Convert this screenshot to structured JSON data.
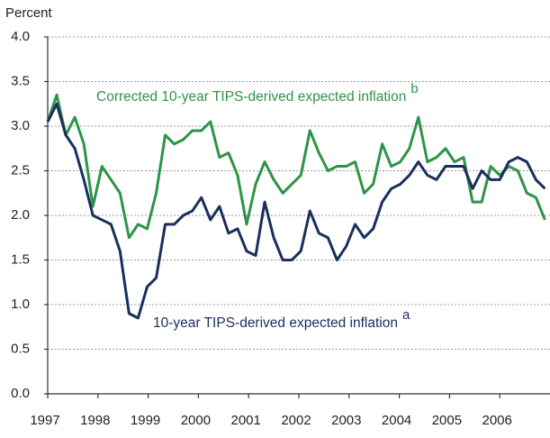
{
  "chart_data": {
    "type": "line",
    "y_axis_label": "Percent",
    "x": [
      1997,
      1997.18,
      1997.36,
      1997.54,
      1997.72,
      1997.9,
      1998.08,
      1998.26,
      1998.44,
      1998.62,
      1998.8,
      1998.98,
      1999.16,
      1999.34,
      1999.52,
      1999.7,
      1999.88,
      2000.06,
      2000.24,
      2000.42,
      2000.6,
      2000.78,
      2000.96,
      2001.14,
      2001.32,
      2001.5,
      2001.68,
      2001.86,
      2002.04,
      2002.22,
      2002.4,
      2002.58,
      2002.76,
      2002.94,
      2003.12,
      2003.3,
      2003.48,
      2003.66,
      2003.84,
      2004.02,
      2004.2,
      2004.38,
      2004.56,
      2004.74,
      2004.92,
      2005.1,
      2005.28,
      2005.46,
      2005.64,
      2005.82,
      2006.0,
      2006.18,
      2006.36,
      2006.54,
      2006.72,
      2006.9
    ],
    "series": [
      {
        "name": "Corrected 10-year TIPS-derived expected inflation",
        "footnote": "b",
        "color": "#2e9447",
        "values": [
          3.05,
          3.35,
          2.9,
          3.1,
          2.8,
          2.1,
          2.55,
          2.4,
          2.25,
          1.75,
          1.9,
          1.85,
          2.25,
          2.9,
          2.8,
          2.85,
          2.95,
          2.95,
          3.05,
          2.65,
          2.7,
          2.45,
          1.9,
          2.35,
          2.6,
          2.4,
          2.25,
          2.35,
          2.45,
          2.95,
          2.7,
          2.5,
          2.55,
          2.55,
          2.6,
          2.25,
          2.35,
          2.8,
          2.55,
          2.6,
          2.75,
          3.1,
          2.6,
          2.65,
          2.75,
          2.6,
          2.65,
          2.15,
          2.15,
          2.55,
          2.45,
          2.55,
          2.5,
          2.25,
          2.2,
          1.95
        ]
      },
      {
        "name": "10-year TIPS-derived expected inflation",
        "footnote": "a",
        "color": "#1b2f5e",
        "values": [
          3.05,
          3.25,
          2.9,
          2.75,
          2.4,
          2.0,
          1.95,
          1.9,
          1.6,
          0.9,
          0.85,
          1.2,
          1.3,
          1.9,
          1.9,
          2.0,
          2.05,
          2.2,
          1.95,
          2.1,
          1.8,
          1.85,
          1.6,
          1.55,
          2.15,
          1.75,
          1.5,
          1.5,
          1.6,
          2.05,
          1.8,
          1.75,
          1.5,
          1.65,
          1.9,
          1.75,
          1.85,
          2.15,
          2.3,
          2.35,
          2.45,
          2.6,
          2.45,
          2.4,
          2.55,
          2.55,
          2.55,
          2.3,
          2.5,
          2.4,
          2.4,
          2.6,
          2.65,
          2.6,
          2.4,
          2.3
        ]
      }
    ],
    "xlim": [
      1997,
      2007
    ],
    "xticks": [
      1997,
      1998,
      1999,
      2000,
      2001,
      2002,
      2003,
      2004,
      2005,
      2006
    ],
    "ylim": [
      0,
      4
    ],
    "yticks": [
      {
        "value": 0,
        "label": "0.0"
      },
      0.5,
      {
        "value": 1,
        "label": "1.0"
      },
      1.5,
      {
        "value": 2,
        "label": "2.0"
      },
      2.5,
      {
        "value": 3,
        "label": "3.0"
      },
      3.5,
      {
        "value": 4,
        "label": "4.0"
      }
    ],
    "grid": true
  }
}
